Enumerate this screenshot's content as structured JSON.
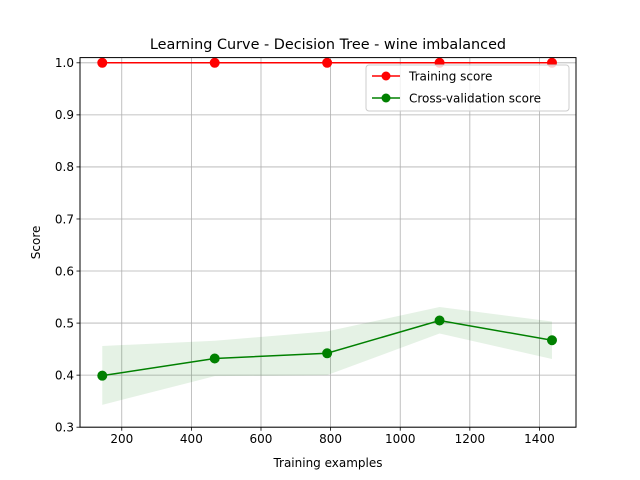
{
  "chart_data": {
    "type": "line",
    "title": "Learning Curve - Decision Tree - wine imbalanced",
    "xlabel": "Training examples",
    "ylabel": "Score",
    "xlim": [
      80,
      1505
    ],
    "ylim": [
      0.3,
      1.01
    ],
    "xticks": [
      200,
      400,
      600,
      800,
      1000,
      1200,
      1400
    ],
    "yticks": [
      0.3,
      0.4,
      0.5,
      0.6,
      0.7,
      0.8,
      0.9,
      1.0
    ],
    "grid": true,
    "legend_position": "top-right",
    "x": [
      144,
      467,
      790,
      1113,
      1436
    ],
    "series": [
      {
        "name": "Training score",
        "color": "#ff0000",
        "values": [
          1.0,
          1.0,
          1.0,
          1.0,
          1.0
        ],
        "band_lower": [
          1.0,
          1.0,
          1.0,
          1.0,
          1.0
        ],
        "band_upper": [
          1.0,
          1.0,
          1.0,
          1.0,
          1.0
        ]
      },
      {
        "name": "Cross-validation score",
        "color": "#008000",
        "values": [
          0.399,
          0.432,
          0.442,
          0.505,
          0.467
        ],
        "band_lower": [
          0.343,
          0.398,
          0.4,
          0.48,
          0.431
        ],
        "band_upper": [
          0.456,
          0.466,
          0.484,
          0.531,
          0.503
        ]
      }
    ]
  }
}
